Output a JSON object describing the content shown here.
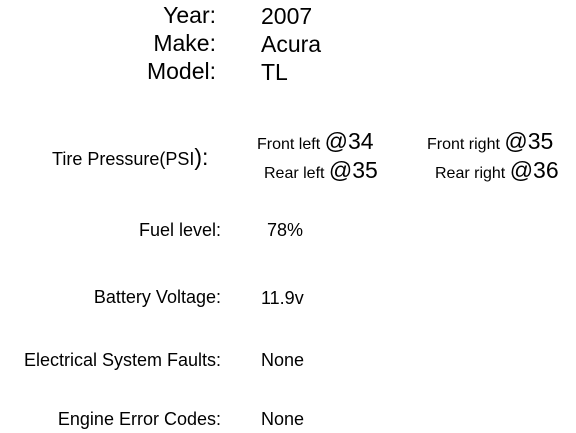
{
  "vehicle": {
    "year_label": "Year:",
    "year_value": "2007",
    "make_label": "Make:",
    "make_value": "Acura",
    "model_label": "Model:",
    "model_value": "TL"
  },
  "tire_pressure": {
    "label": "Tire Pressure(PSI",
    "label_paren": "):",
    "front_left_label": "Front left",
    "front_left_value": "@34",
    "front_right_label": "Front right",
    "front_right_value": "@35",
    "rear_left_label": "Rear left",
    "rear_left_value": "@35",
    "rear_right_label": "Rear right",
    "rear_right_value": "@36"
  },
  "fuel": {
    "label": "Fuel level:",
    "value": "78%"
  },
  "battery": {
    "label": "Battery Voltage:",
    "value": "11.9v"
  },
  "electrical": {
    "label": "Electrical System Faults:",
    "value": "None"
  },
  "engine": {
    "label": "Engine Error Codes:",
    "value": "None"
  }
}
